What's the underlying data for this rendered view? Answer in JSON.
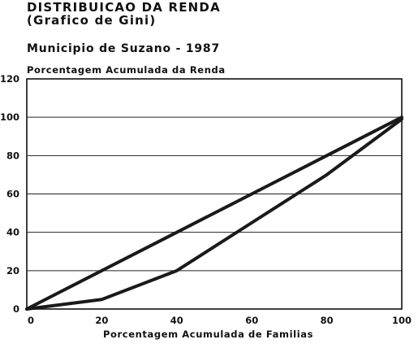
{
  "chart_data": {
    "type": "line",
    "title": "DISTRIBUICAO DA RENDA",
    "subtitle_1": "(Grafico de Gini)",
    "subtitle_2": "Municipio de Suzano - 1987",
    "ylabel": "Porcentagem Acumulada da Renda",
    "xlabel": "Porcentagem Acumulada de Familias",
    "xlim": [
      0,
      100
    ],
    "ylim": [
      0,
      120
    ],
    "x_ticks": [
      "0",
      "20",
      "40",
      "60",
      "80",
      "100"
    ],
    "y_ticks": [
      "0",
      "20",
      "40",
      "60",
      "80",
      "100",
      "120"
    ],
    "grid": "horizontal",
    "series": [
      {
        "x": [
          0,
          20,
          40,
          60,
          80,
          100
        ],
        "values": [
          0,
          20,
          40,
          60,
          80,
          100
        ]
      },
      {
        "x": [
          0,
          20,
          40,
          60,
          80,
          100
        ],
        "values": [
          0,
          5,
          20,
          45,
          70,
          99
        ]
      }
    ],
    "line_color": "#1a1a1a"
  }
}
